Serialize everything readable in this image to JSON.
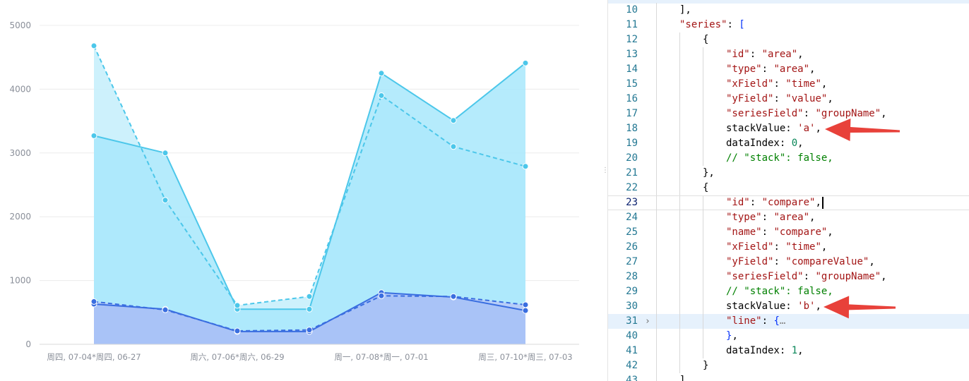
{
  "chart_data": {
    "type": "area",
    "y_ticks": [
      "5000",
      "4000",
      "3000",
      "2000",
      "1000",
      "0"
    ],
    "y_tick_values": [
      5000,
      4000,
      3000,
      2000,
      1000,
      0
    ],
    "ylim": [
      0,
      5000
    ],
    "grid": true,
    "x_labels": [
      "周四, 07-04*周四, 06-27",
      "周六, 07-06*周六, 06-29",
      "周一, 07-08*周一, 07-01",
      "周三, 07-10*周三, 07-03"
    ],
    "x_count": 7,
    "x_label_indices": [
      0,
      2,
      4,
      6
    ],
    "series": [
      {
        "group": "a",
        "style": "solid",
        "color": "#4cc7ea",
        "fill": "#a8e7fb",
        "values": [
          3270,
          3000,
          550,
          550,
          4250,
          3510,
          4410
        ]
      },
      {
        "group": "a",
        "style": "dashed",
        "color": "#4cc7ea",
        "fill": "#c8f0fc",
        "values": [
          4680,
          2260,
          610,
          750,
          3900,
          3100,
          2790
        ]
      },
      {
        "group": "b",
        "style": "solid",
        "color": "#3a6ee0",
        "fill": "#a9c3f7",
        "values": [
          630,
          550,
          200,
          200,
          810,
          740,
          530
        ]
      },
      {
        "group": "b",
        "style": "dashed",
        "color": "#3a6ee0",
        "fill": "#b7cdf8",
        "values": [
          670,
          540,
          210,
          225,
          760,
          750,
          620
        ]
      }
    ]
  },
  "editor": {
    "lines": [
      {
        "num": "10",
        "indent": 1,
        "tokens": [
          [
            "punc",
            "],"
          ]
        ]
      },
      {
        "num": "11",
        "indent": 1,
        "tokens": [
          [
            "key",
            "\"series\""
          ],
          [
            "punc",
            ": "
          ],
          [
            "bracket",
            "["
          ]
        ]
      },
      {
        "num": "12",
        "indent": 2,
        "tokens": [
          [
            "punc",
            "{"
          ]
        ]
      },
      {
        "num": "13",
        "indent": 3,
        "tokens": [
          [
            "key",
            "\"id\""
          ],
          [
            "punc",
            ": "
          ],
          [
            "str",
            "\"area\""
          ],
          [
            "punc",
            ","
          ]
        ]
      },
      {
        "num": "14",
        "indent": 3,
        "tokens": [
          [
            "key",
            "\"type\""
          ],
          [
            "punc",
            ": "
          ],
          [
            "str",
            "\"area\""
          ],
          [
            "punc",
            ","
          ]
        ]
      },
      {
        "num": "15",
        "indent": 3,
        "tokens": [
          [
            "key",
            "\"xField\""
          ],
          [
            "punc",
            ": "
          ],
          [
            "str",
            "\"time\""
          ],
          [
            "punc",
            ","
          ]
        ]
      },
      {
        "num": "16",
        "indent": 3,
        "tokens": [
          [
            "key",
            "\"yField\""
          ],
          [
            "punc",
            ": "
          ],
          [
            "str",
            "\"value\""
          ],
          [
            "punc",
            ","
          ]
        ]
      },
      {
        "num": "17",
        "indent": 3,
        "tokens": [
          [
            "key",
            "\"seriesField\""
          ],
          [
            "punc",
            ": "
          ],
          [
            "str",
            "\"groupName\""
          ],
          [
            "punc",
            ","
          ]
        ]
      },
      {
        "num": "18",
        "indent": 3,
        "tokens": [
          [
            "ident",
            "stackValue"
          ],
          [
            "punc",
            ": "
          ],
          [
            "sq",
            "'a'"
          ],
          [
            "punc",
            ","
          ]
        ]
      },
      {
        "num": "19",
        "indent": 3,
        "tokens": [
          [
            "ident",
            "dataIndex"
          ],
          [
            "punc",
            ": "
          ],
          [
            "num",
            "0"
          ],
          [
            "punc",
            ","
          ]
        ]
      },
      {
        "num": "20",
        "indent": 3,
        "tokens": [
          [
            "comment",
            "// \"stack\": false,"
          ]
        ]
      },
      {
        "num": "21",
        "indent": 2,
        "tokens": [
          [
            "punc",
            "},"
          ]
        ]
      },
      {
        "num": "22",
        "indent": 2,
        "tokens": [
          [
            "punc",
            "{"
          ]
        ]
      },
      {
        "num": "23",
        "indent": 3,
        "current": true,
        "tokens": [
          [
            "key",
            "\"id\""
          ],
          [
            "punc",
            ": "
          ],
          [
            "str",
            "\"compare\""
          ],
          [
            "punc",
            ","
          ]
        ]
      },
      {
        "num": "24",
        "indent": 3,
        "tokens": [
          [
            "key",
            "\"type\""
          ],
          [
            "punc",
            ": "
          ],
          [
            "str",
            "\"area\""
          ],
          [
            "punc",
            ","
          ]
        ]
      },
      {
        "num": "25",
        "indent": 3,
        "tokens": [
          [
            "key",
            "\"name\""
          ],
          [
            "punc",
            ": "
          ],
          [
            "str",
            "\"compare\""
          ],
          [
            "punc",
            ","
          ]
        ]
      },
      {
        "num": "26",
        "indent": 3,
        "tokens": [
          [
            "key",
            "\"xField\""
          ],
          [
            "punc",
            ": "
          ],
          [
            "str",
            "\"time\""
          ],
          [
            "punc",
            ","
          ]
        ]
      },
      {
        "num": "27",
        "indent": 3,
        "tokens": [
          [
            "key",
            "\"yField\""
          ],
          [
            "punc",
            ": "
          ],
          [
            "str",
            "\"compareValue\""
          ],
          [
            "punc",
            ","
          ]
        ]
      },
      {
        "num": "28",
        "indent": 3,
        "tokens": [
          [
            "key",
            "\"seriesField\""
          ],
          [
            "punc",
            ": "
          ],
          [
            "str",
            "\"groupName\""
          ],
          [
            "punc",
            ","
          ]
        ]
      },
      {
        "num": "29",
        "indent": 3,
        "tokens": [
          [
            "comment",
            "// \"stack\": false,"
          ]
        ]
      },
      {
        "num": "30",
        "indent": 3,
        "tokens": [
          [
            "ident",
            "stackValue"
          ],
          [
            "punc",
            ": "
          ],
          [
            "sq",
            "'b'"
          ],
          [
            "punc",
            ","
          ]
        ]
      },
      {
        "num": "31",
        "indent": 3,
        "highlight": true,
        "fold": "›",
        "tokens": [
          [
            "key",
            "\"line\""
          ],
          [
            "punc",
            ": "
          ],
          [
            "bracket",
            "{"
          ],
          [
            "fold",
            "…"
          ]
        ]
      },
      {
        "num": "40",
        "indent": 3,
        "tokens": [
          [
            "bracket",
            "}"
          ],
          [
            "punc",
            ","
          ]
        ]
      },
      {
        "num": "41",
        "indent": 3,
        "tokens": [
          [
            "ident",
            "dataIndex"
          ],
          [
            "punc",
            ": "
          ],
          [
            "num",
            "1"
          ],
          [
            "punc",
            ","
          ]
        ]
      },
      {
        "num": "42",
        "indent": 2,
        "tokens": [
          [
            "punc",
            "}"
          ]
        ]
      },
      {
        "num": "43",
        "indent": 1,
        "tokens": [
          [
            "punc",
            "],"
          ]
        ]
      }
    ]
  },
  "annotations": {
    "arrow_color": "#e8413a",
    "arrow_targets": [
      "18",
      "30"
    ]
  },
  "colors": {
    "grid": "#ececec",
    "axis_label": "#8a8f99",
    "line_number": "#237893"
  }
}
